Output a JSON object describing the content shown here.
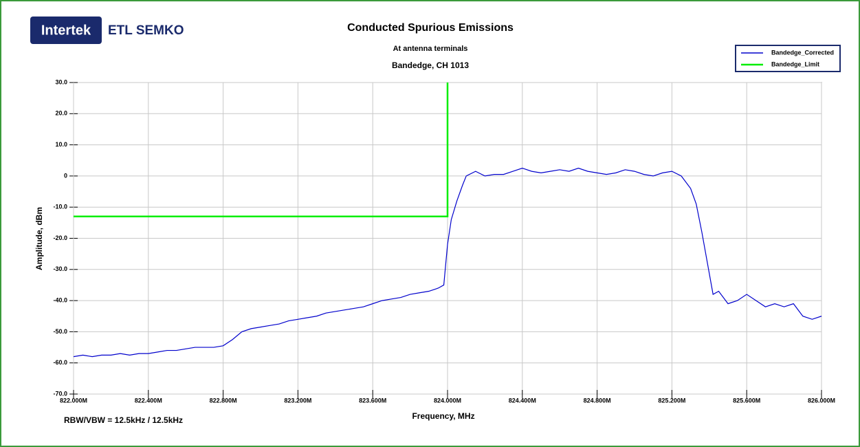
{
  "chart_data": {
    "type": "line",
    "logo": [
      "Intertek",
      "ETL SEMKO"
    ],
    "title": "Conducted Spurious Emissions",
    "subtitle": [
      "At antenna terminals",
      "Bandedge, CH 1013"
    ],
    "x_label": "Frequency, MHz",
    "y_label": "Amplitude, dBm",
    "annotation": "RBW/VBW = 12.5kHz / 12.5kHz",
    "xlim": [
      822,
      826
    ],
    "ylim": [
      -70,
      30
    ],
    "xticks": [
      {
        "value": 822,
        "label": "822.000M"
      },
      {
        "value": 822.4,
        "label": "822.400M"
      },
      {
        "value": 822.8,
        "label": "822.800M"
      },
      {
        "value": 823.2,
        "label": "823.200M"
      },
      {
        "value": 823.6,
        "label": "823.600M"
      },
      {
        "value": 824,
        "label": "824.000M"
      },
      {
        "value": 824.4,
        "label": "824.400M"
      },
      {
        "value": 824.8,
        "label": "824.800M"
      },
      {
        "value": 825.2,
        "label": "825.200M"
      },
      {
        "value": 825.6,
        "label": "825.600M"
      },
      {
        "value": 826,
        "label": "826.000M"
      }
    ],
    "yticks": [
      {
        "value": 30,
        "label": "30.0"
      },
      {
        "value": 20,
        "label": "20.0"
      },
      {
        "value": 10,
        "label": "10.0"
      },
      0,
      {
        "value": -10,
        "label": "-10.0"
      },
      {
        "value": -20,
        "label": "-20.0"
      },
      {
        "value": -30,
        "label": "-30.0"
      },
      {
        "value": -40,
        "label": "-40.0"
      },
      {
        "value": -50,
        "label": "-50.0"
      },
      {
        "value": -60,
        "label": "-60.0"
      },
      {
        "value": -70,
        "label": "-70.0"
      }
    ],
    "grid": true,
    "legend": "top-right",
    "series": [
      {
        "name": "Bandedge_Corrected",
        "color": "#0000cc",
        "x": [
          822.0,
          822.05,
          822.1,
          822.15,
          822.2,
          822.25,
          822.3,
          822.35,
          822.4,
          822.45,
          822.5,
          822.55,
          822.6,
          822.65,
          822.7,
          822.75,
          822.8,
          822.85,
          822.9,
          822.95,
          823.0,
          823.05,
          823.1,
          823.15,
          823.2,
          823.25,
          823.3,
          823.35,
          823.4,
          823.45,
          823.5,
          823.55,
          823.6,
          823.65,
          823.7,
          823.75,
          823.8,
          823.85,
          823.9,
          823.95,
          823.98,
          824.0,
          824.02,
          824.05,
          824.08,
          824.1,
          824.15,
          824.2,
          824.25,
          824.3,
          824.35,
          824.4,
          824.45,
          824.5,
          824.55,
          824.6,
          824.65,
          824.7,
          824.75,
          824.8,
          824.85,
          824.9,
          824.95,
          825.0,
          825.05,
          825.1,
          825.15,
          825.2,
          825.25,
          825.3,
          825.33,
          825.36,
          825.39,
          825.42,
          825.45,
          825.5,
          825.55,
          825.6,
          825.65,
          825.7,
          825.75,
          825.8,
          825.85,
          825.9,
          825.95,
          826.0
        ],
        "values": [
          -58,
          -57.5,
          -58,
          -57.5,
          -57.5,
          -57,
          -57.5,
          -57,
          -57,
          -56.5,
          -56,
          -56,
          -55.5,
          -55,
          -55,
          -55,
          -54.5,
          -52.5,
          -50,
          -49,
          -48.5,
          -48,
          -47.5,
          -46.5,
          -46,
          -45.5,
          -45,
          -44,
          -43.5,
          -43,
          -42.5,
          -42,
          -41,
          -40,
          -39.5,
          -39,
          -38,
          -37.5,
          -37,
          -36,
          -35,
          -22,
          -14,
          -8,
          -3,
          0,
          1.5,
          0,
          0.5,
          0.5,
          1.5,
          2.5,
          1.5,
          1,
          1.5,
          2,
          1.5,
          2.5,
          1.5,
          1,
          0.5,
          1,
          2,
          1.5,
          0.5,
          0,
          1,
          1.5,
          0,
          -4,
          -9,
          -18,
          -28,
          -38,
          -37,
          -41,
          -40,
          -38,
          -40,
          -42,
          -41,
          -42,
          -41,
          -45,
          -46,
          -45
        ]
      },
      {
        "name": "Bandedge_Limit",
        "color": "#00ee00",
        "x": [
          822,
          824,
          824
        ],
        "values": [
          -13,
          -13,
          30
        ]
      }
    ]
  }
}
